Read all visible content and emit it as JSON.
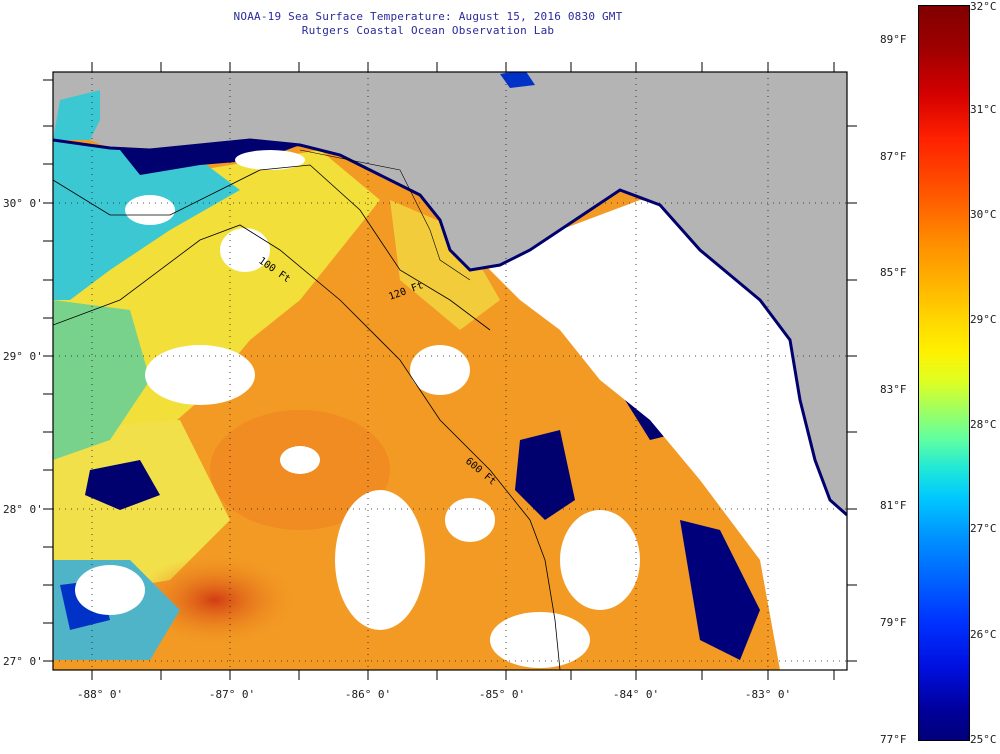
{
  "header": {
    "title": "NOAA-19 Sea Surface Temperature:  August 15, 2016 0830 GMT",
    "subtitle": "Rutgers Coastal Ocean Observation Lab"
  },
  "latitude_labels": [
    "30° 0'",
    "29° 0'",
    "28° 0'",
    "27° 0'"
  ],
  "longitude_labels": [
    "-88° 0'",
    "-87° 0'",
    "-86° 0'",
    "-85° 0'",
    "-84° 0'",
    "-83° 0'"
  ],
  "contour_labels": [
    "100 Ft",
    "120 Ft",
    "600 Ft"
  ],
  "colorbar": {
    "fahrenheit": [
      "89°F",
      "87°F",
      "85°F",
      "83°F",
      "81°F",
      "79°F",
      "77°F"
    ],
    "celsius": [
      "32°C",
      "31°C",
      "30°C",
      "29°C",
      "28°C",
      "27°C",
      "26°C",
      "25°C"
    ]
  },
  "colors": {
    "land": "#b4b4b4",
    "cloud": "#ffffff",
    "warm": "#f08c1e",
    "mid": "#f5dc32",
    "cool": "#32c8dc",
    "cold": "#00006e",
    "text": "#2a2a9a"
  }
}
